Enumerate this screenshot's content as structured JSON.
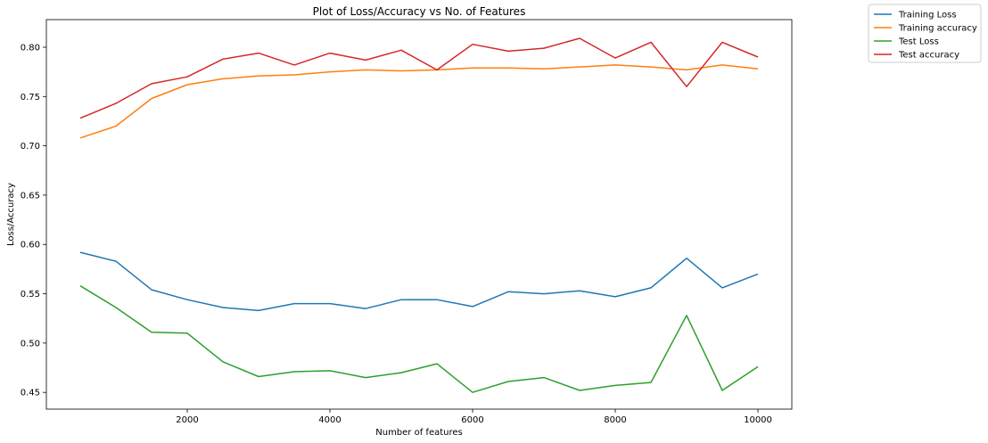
{
  "chart_data": {
    "type": "line",
    "title": "Plot of Loss/Accuracy vs No. of Features",
    "xlabel": "Number of features",
    "ylabel": "Loss/Accuracy",
    "xlim": [
      25,
      10475
    ],
    "ylim": [
      0.433,
      0.828
    ],
    "xticks": [
      2000,
      4000,
      6000,
      8000,
      10000
    ],
    "yticks": [
      0.45,
      0.5,
      0.55,
      0.6,
      0.65,
      0.7,
      0.75,
      0.8
    ],
    "grid": false,
    "legend_placement": "outside top-right",
    "x": [
      500,
      1000,
      1500,
      2000,
      2500,
      3000,
      3500,
      4000,
      4500,
      5000,
      5500,
      6000,
      6500,
      7000,
      7500,
      8000,
      8500,
      9000,
      9500,
      10000
    ],
    "series": [
      {
        "name": "Training Loss",
        "color": "#1f77b4",
        "values": [
          0.592,
          0.583,
          0.554,
          0.544,
          0.536,
          0.533,
          0.54,
          0.54,
          0.535,
          0.544,
          0.544,
          0.537,
          0.552,
          0.55,
          0.553,
          0.547,
          0.556,
          0.586,
          0.556,
          0.57
        ]
      },
      {
        "name": "Training accuracy",
        "color": "#ff7f0e",
        "values": [
          0.708,
          0.72,
          0.748,
          0.762,
          0.768,
          0.771,
          0.772,
          0.775,
          0.777,
          0.776,
          0.777,
          0.779,
          0.779,
          0.778,
          0.78,
          0.782,
          0.78,
          0.777,
          0.782,
          0.778
        ]
      },
      {
        "name": "Test Loss",
        "color": "#2ca02c",
        "values": [
          0.558,
          0.536,
          0.511,
          0.51,
          0.481,
          0.466,
          0.471,
          0.472,
          0.465,
          0.47,
          0.479,
          0.45,
          0.461,
          0.465,
          0.452,
          0.457,
          0.46,
          0.528,
          0.452,
          0.476
        ]
      },
      {
        "name": "Test accuracy",
        "color": "#d62728",
        "values": [
          0.728,
          0.743,
          0.763,
          0.77,
          0.788,
          0.794,
          0.782,
          0.794,
          0.787,
          0.797,
          0.777,
          0.803,
          0.796,
          0.799,
          0.809,
          0.789,
          0.805,
          0.76,
          0.805,
          0.79
        ]
      }
    ]
  }
}
